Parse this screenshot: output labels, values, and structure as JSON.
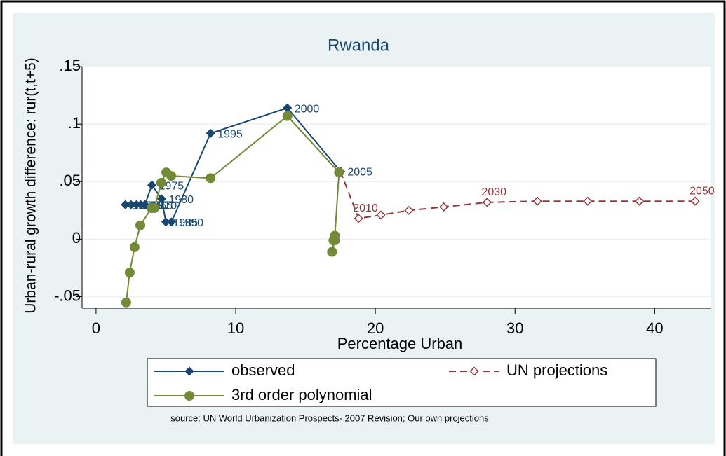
{
  "chart_data": {
    "type": "line",
    "title": "Rwanda",
    "x_label": "Percentage Urban",
    "y_label": "Urban-rural growth difference: rur(t,t+5)",
    "source": "source: UN World Urbanization Prospects- 2007 Revision; Our own projections",
    "xlim": [
      -1,
      44
    ],
    "xticks": [
      0,
      10,
      20,
      30,
      40
    ],
    "ylim": [
      -0.06,
      0.15
    ],
    "yticks": [
      {
        "value": -0.05,
        "label": "-.05"
      },
      0,
      {
        "value": 0.05,
        "label": ".05"
      },
      {
        "value": 0.1,
        "label": ".1"
      },
      {
        "value": 0.15,
        "label": ".15"
      }
    ],
    "grid": true,
    "series": [
      {
        "name": "observed",
        "color": "#1a476f",
        "dash": false,
        "marker": "diamond",
        "x": [
          2.1,
          2.5,
          2.9,
          3.2,
          3.5,
          4.0,
          4.7,
          5.0,
          5.4,
          8.2,
          13.7,
          17.5
        ],
        "values": [
          0.03,
          0.03,
          0.03,
          0.03,
          0.03,
          0.047,
          0.035,
          0.015,
          0.015,
          0.092,
          0.114,
          0.059
        ],
        "labels": [
          "1950",
          "1955",
          "1960",
          "1965",
          "1970",
          "1975",
          "1980",
          "1985",
          "1990",
          "1995",
          "2000",
          "2005"
        ]
      },
      {
        "name": "UN projections",
        "color": "#90353b",
        "dash": true,
        "marker": "hollow-diamond",
        "x": [
          17.5,
          18.8,
          20.4,
          22.4,
          24.9,
          28.0,
          31.6,
          35.2,
          38.9,
          42.9
        ],
        "values": [
          0.059,
          0.018,
          0.021,
          0.025,
          0.028,
          0.032,
          0.033,
          0.033,
          0.033,
          0.033
        ],
        "labels": [
          null,
          "2010",
          null,
          null,
          null,
          "2030",
          null,
          null,
          null,
          "2050"
        ]
      },
      {
        "name": "3rd order polynomial",
        "color": "#738a36",
        "dash": false,
        "marker": "circle",
        "x": [
          2.16,
          2.41,
          2.76,
          3.17,
          3.97,
          4.17,
          4.67,
          5.03,
          5.38,
          8.2,
          13.7,
          17.4,
          17.1,
          17.0,
          16.9,
          17.1
        ],
        "values": [
          -0.055,
          -0.029,
          -0.007,
          0.012,
          0.027,
          0.027,
          0.049,
          0.058,
          0.055,
          0.053,
          0.107,
          0.058,
          0.003,
          -0.001,
          -0.011,
          -0.001
        ],
        "labels": []
      }
    ]
  }
}
